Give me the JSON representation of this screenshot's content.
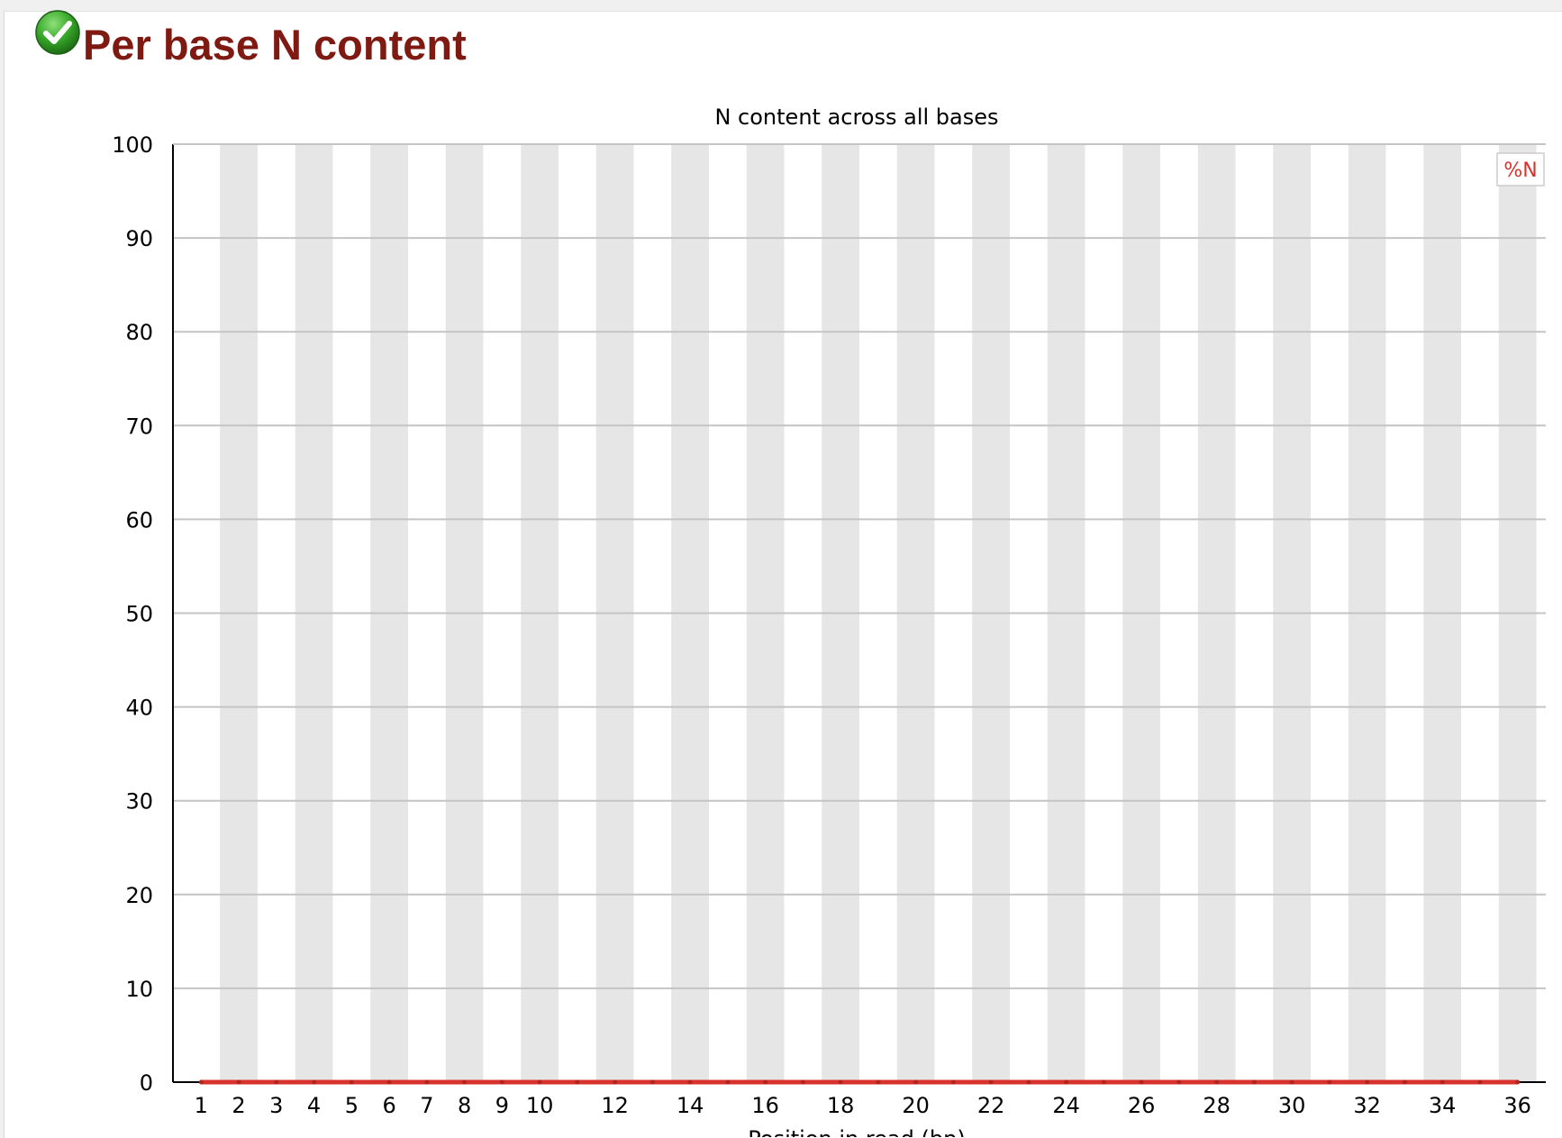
{
  "module": {
    "title": "Per base N content",
    "status_icon": "pass-check-icon",
    "status": "pass"
  },
  "chart_data": {
    "type": "line",
    "title": "N content across all bases",
    "xlabel": "Position in read (bp)",
    "ylabel": "",
    "ylim": [
      0,
      100
    ],
    "yticks": [
      0,
      10,
      20,
      30,
      40,
      50,
      60,
      70,
      80,
      90,
      100
    ],
    "categories": [
      "1",
      "2",
      "3",
      "4",
      "5",
      "6",
      "7",
      "8",
      "9",
      "10",
      "11",
      "12",
      "13",
      "14",
      "15",
      "16",
      "17",
      "18",
      "19",
      "20",
      "21",
      "22",
      "23",
      "24",
      "25",
      "26",
      "27",
      "28",
      "29",
      "30",
      "31",
      "32",
      "33",
      "34",
      "35",
      "36"
    ],
    "x_tick_labels": [
      "1",
      "2",
      "3",
      "4",
      "5",
      "6",
      "7",
      "8",
      "9",
      "10",
      "12",
      "14",
      "16",
      "18",
      "20",
      "22",
      "24",
      "26",
      "28",
      "30",
      "32",
      "34",
      "36"
    ],
    "series": [
      {
        "name": "%N",
        "color": "#d9312b",
        "values": [
          0,
          0,
          0,
          0,
          0,
          0,
          0,
          0,
          0,
          0,
          0,
          0,
          0,
          0,
          0,
          0,
          0,
          0,
          0,
          0,
          0,
          0,
          0,
          0,
          0,
          0,
          0,
          0,
          0,
          0,
          0,
          0,
          0,
          0,
          0,
          0
        ]
      }
    ],
    "grid": true,
    "alternating_band_color": "#e6e6e6",
    "legend_position": "top-right"
  }
}
